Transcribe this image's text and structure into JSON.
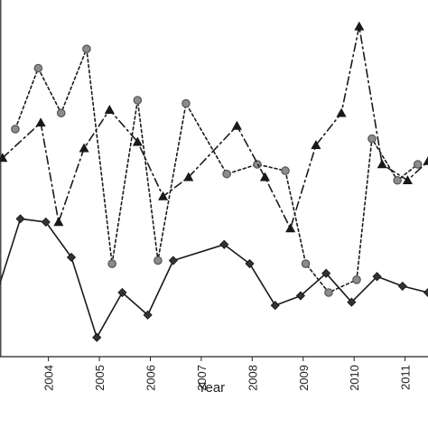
{
  "chart_data": {
    "type": "line",
    "xlabel": "Year",
    "ylabel": "",
    "title": "",
    "x_ticks": [
      "2004",
      "2005",
      "2006",
      "2007",
      "2008",
      "2009",
      "2010",
      "2011"
    ],
    "xlim": [
      2003.05,
      2011.45
    ],
    "ylim": [
      0,
      1
    ],
    "grid": false,
    "series": [
      {
        "style": "solid",
        "marker": "diamond",
        "color": "#1a1a1a",
        "marker_fill": "#333333",
        "x": [
          2002.95,
          2003.45,
          2003.95,
          2004.45,
          2004.95,
          2005.45,
          2005.95,
          2006.45,
          2007.45,
          2007.95,
          2008.45,
          2008.95,
          2009.45,
          2009.95,
          2010.45,
          2010.95,
          2011.45
        ],
        "y": [
          0.18,
          0.43,
          0.42,
          0.31,
          0.06,
          0.2,
          0.13,
          0.3,
          0.35,
          0.29,
          0.16,
          0.19,
          0.26,
          0.17,
          0.25,
          0.22,
          0.2
        ]
      },
      {
        "style": "dotted",
        "marker": "circle",
        "color": "#1a1a1a",
        "marker_fill": "#8c8c8c",
        "x": [
          2003.35,
          2003.8,
          2004.25,
          2004.75,
          2005.25,
          2005.75,
          2006.15,
          2006.7,
          2007.5,
          2008.1,
          2008.65,
          2009.05,
          2009.5,
          2010.05,
          2010.35,
          2010.85,
          2011.25
        ],
        "y": [
          0.71,
          0.9,
          0.76,
          0.96,
          0.29,
          0.8,
          0.3,
          0.79,
          0.57,
          0.6,
          0.58,
          0.29,
          0.2,
          0.24,
          0.68,
          0.55,
          0.6
        ]
      },
      {
        "style": "dashdot",
        "marker": "triangle",
        "color": "#1a1a1a",
        "marker_fill": "#1a1a1a",
        "x": [
          2003.1,
          2003.85,
          2004.2,
          2004.7,
          2005.2,
          2005.75,
          2006.25,
          2006.75,
          2007.7,
          2008.25,
          2008.75,
          2009.25,
          2009.75,
          2010.1,
          2010.55,
          2011.05,
          2011.45
        ],
        "y": [
          0.62,
          0.73,
          0.42,
          0.65,
          0.77,
          0.67,
          0.5,
          0.56,
          0.72,
          0.56,
          0.4,
          0.66,
          0.76,
          1.03,
          0.6,
          0.55,
          0.61
        ]
      }
    ]
  }
}
